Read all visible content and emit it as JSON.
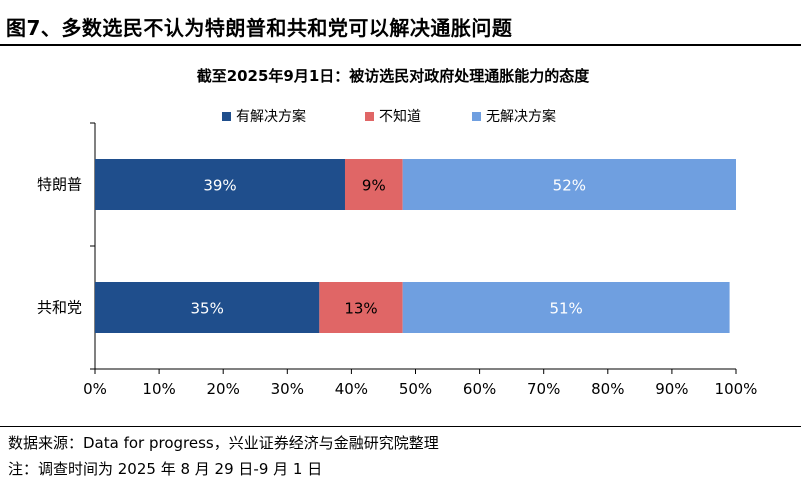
{
  "figure_title": "图7、多数选民不认为特朗普和共和党可以解决通胀问题",
  "source_note": "数据来源：Data for progress，兴业证券经济与金融研究院整理",
  "remark_note": "注：调查时间为 2025 年 8 月 29 日-9 月 1 日",
  "chart_data": {
    "type": "bar",
    "orientation": "horizontal",
    "stacked": true,
    "title": "截至2025年9月1日：被访选民对政府处理通胀能力的态度",
    "categories": [
      "特朗普",
      "共和党"
    ],
    "series": [
      {
        "name": "有解决方案",
        "values": [
          39,
          35
        ],
        "labels": [
          "39%",
          "35%"
        ],
        "color": "#1f4e8c"
      },
      {
        "name": "不知道",
        "values": [
          9,
          13
        ],
        "labels": [
          "9%",
          "13%"
        ],
        "color": "#e06666"
      },
      {
        "name": "无解决方案",
        "values": [
          52,
          51
        ],
        "labels": [
          "52%",
          "51%"
        ],
        "color": "#6f9fe0"
      }
    ],
    "xlim": [
      0,
      100
    ],
    "x_ticks": [
      "0%",
      "10%",
      "20%",
      "30%",
      "40%",
      "50%",
      "60%",
      "70%",
      "80%",
      "90%",
      "100%"
    ],
    "legend_position": "top-center",
    "grid": false
  }
}
